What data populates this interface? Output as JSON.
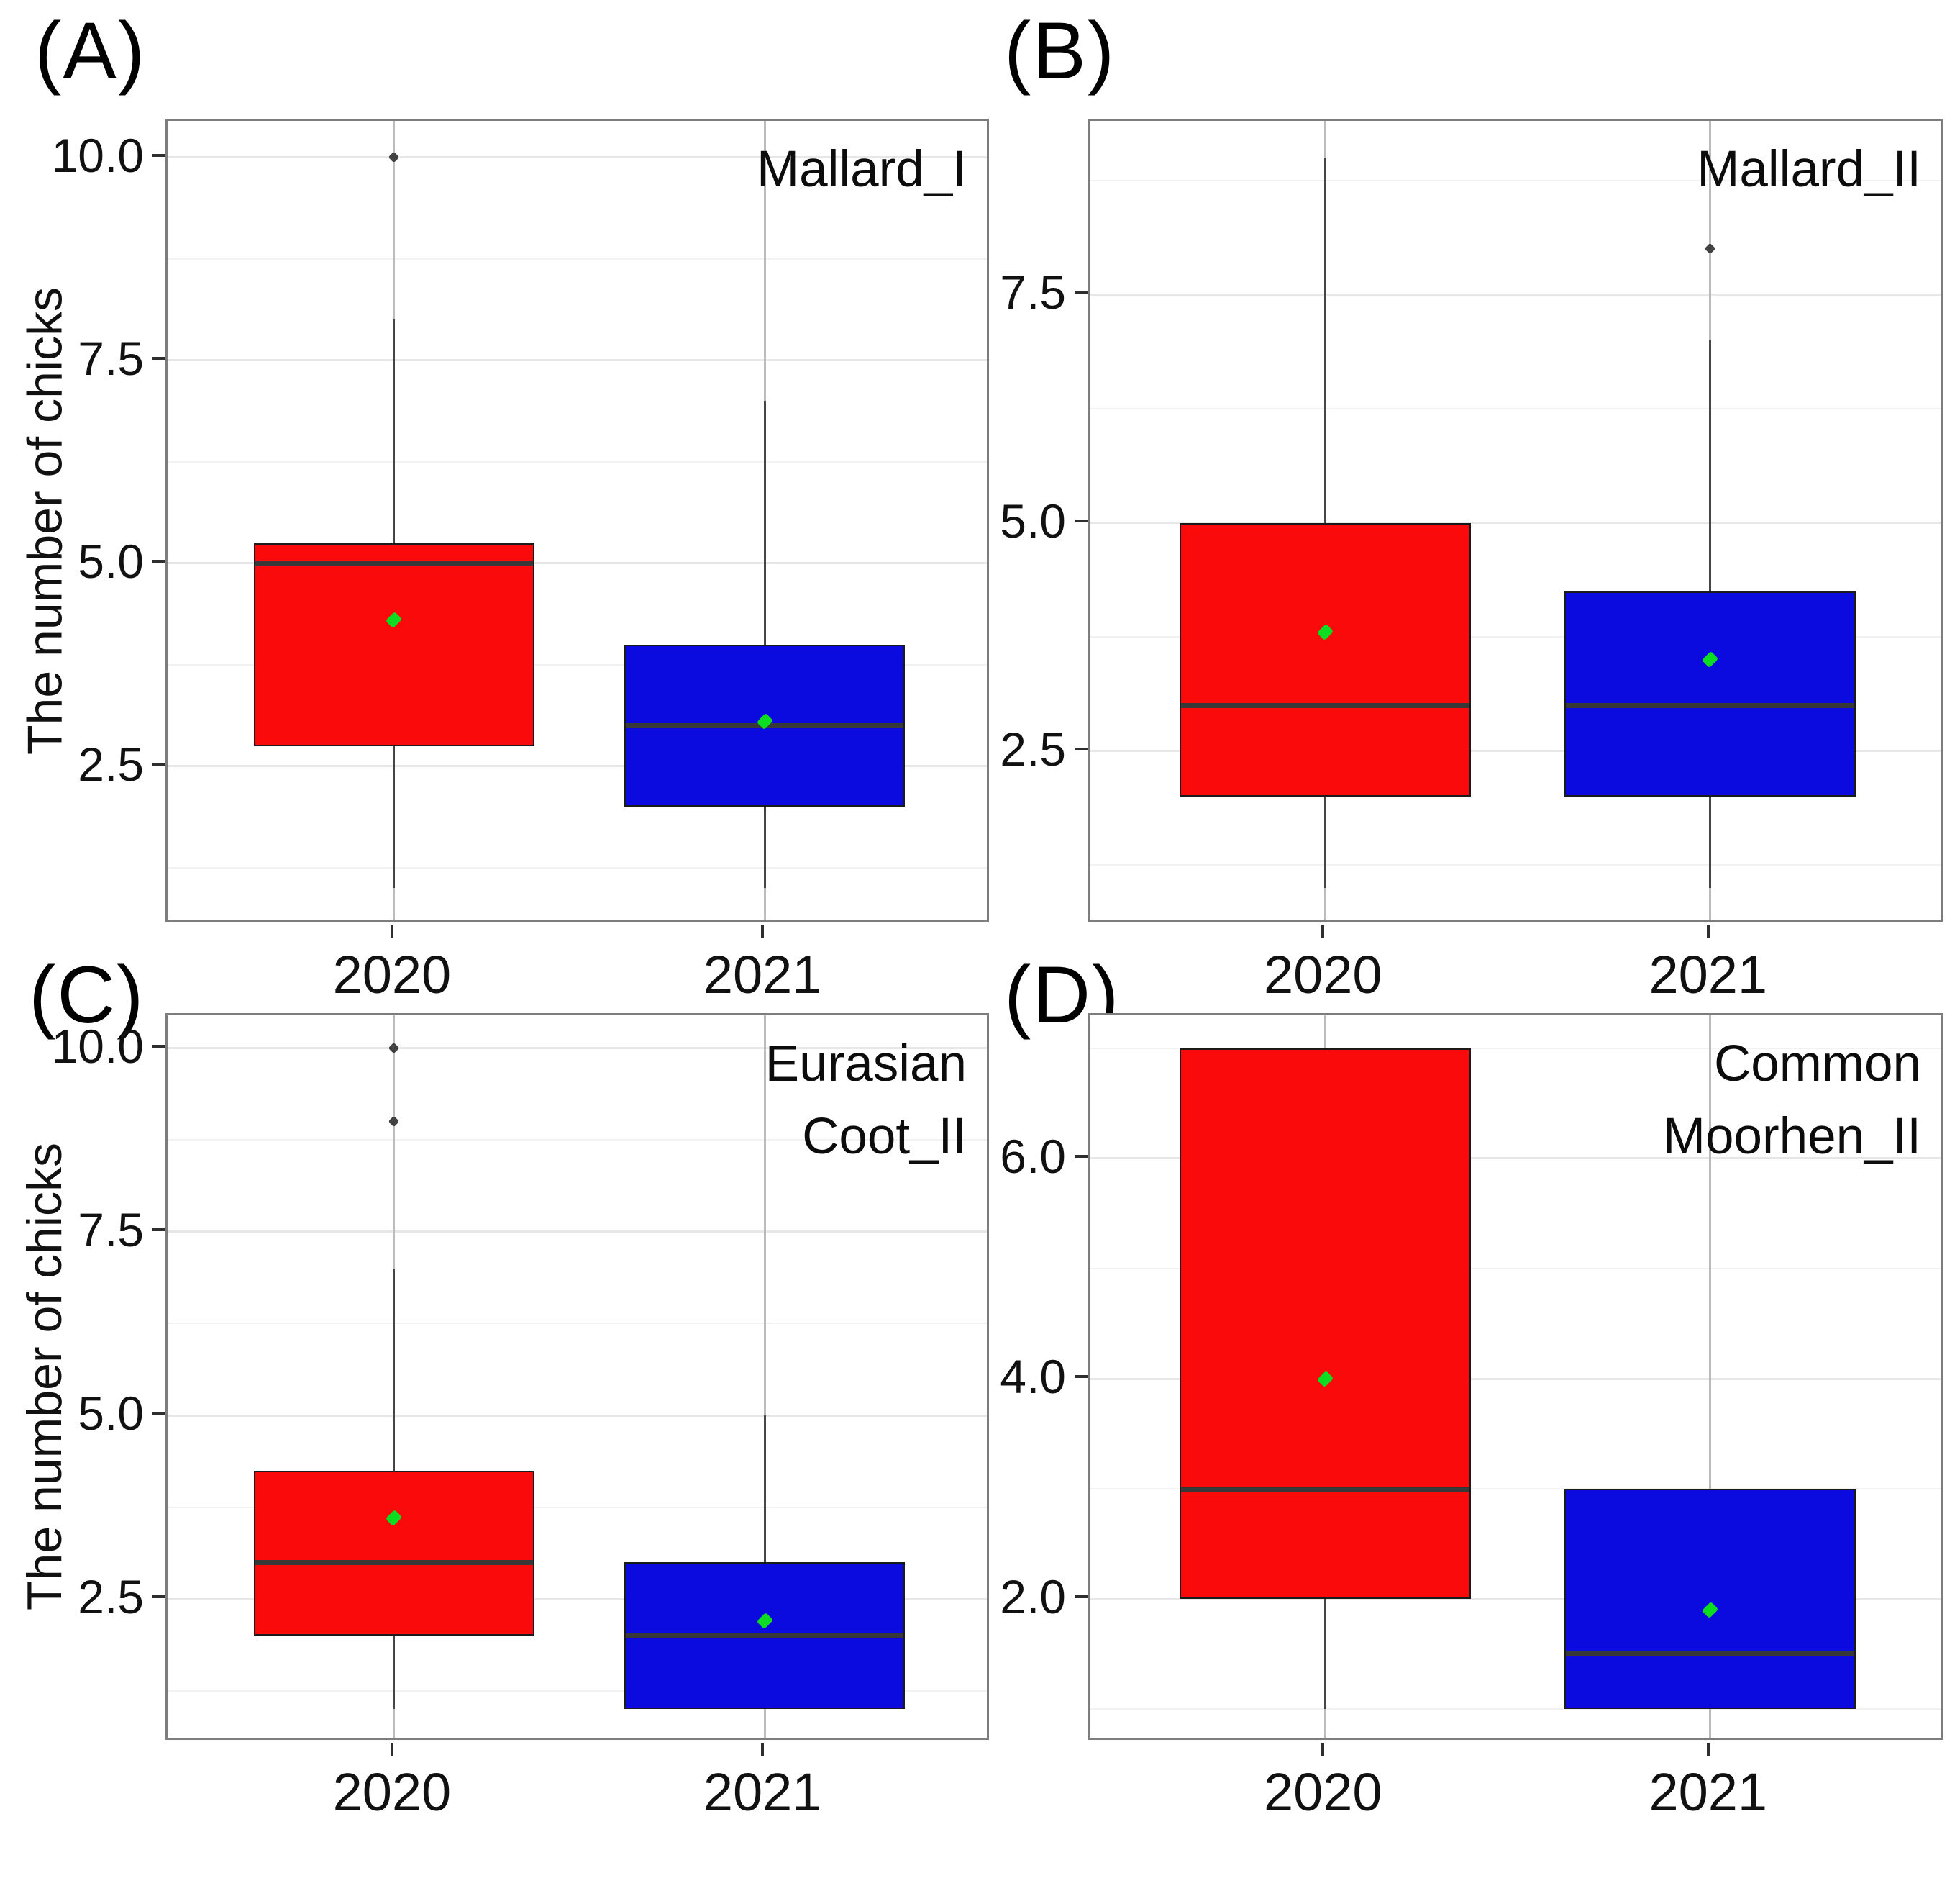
{
  "figure": {
    "description": "Four-panel boxplot figure comparing the number of chicks between 2020 and 2021 for different waterbird species",
    "background": "#ffffff",
    "colors": {
      "year_2020_fill": "#fa0a0a",
      "year_2021_fill": "#0b0be0",
      "mean_marker": "#0ddd22",
      "median_line": "#383838",
      "whisker": "#454545",
      "outlier": "#424242",
      "panel_border": "#7d7d7d",
      "grid_major": "#e7e7e7",
      "grid_minor": "#f2f2f2"
    }
  },
  "chart_data": [
    {
      "type": "boxplot",
      "letter": "(A)",
      "title_lines": [
        "Mallard_I"
      ],
      "y_axis_label": "The number of chicks",
      "ylim": [
        0.55,
        10.45
      ],
      "major_ticks": [
        2.5,
        5.0,
        7.5,
        10.0
      ],
      "tick_labels": [
        "2.5",
        "5.0",
        "7.5",
        "10.0"
      ],
      "minor_ticks": [
        1.25,
        3.75,
        6.25,
        8.75
      ],
      "x_categories": [
        "2020",
        "2021"
      ],
      "boxes": [
        {
          "category": "2020",
          "fill": "#fa0a0a",
          "whisker_low": 1.0,
          "q1": 2.75,
          "median": 5.0,
          "q3": 5.25,
          "whisker_high": 8.0,
          "mean": 4.3,
          "outliers": [
            10.0
          ]
        },
        {
          "category": "2021",
          "fill": "#0b0be0",
          "whisker_low": 1.0,
          "q1": 2.0,
          "median": 3.0,
          "q3": 4.0,
          "whisker_high": 7.0,
          "mean": 3.05,
          "outliers": []
        }
      ]
    },
    {
      "type": "boxplot",
      "letter": "(B)",
      "title_lines": [
        "Mallard_II"
      ],
      "y_axis_label": null,
      "ylim": [
        0.6,
        9.4
      ],
      "major_ticks": [
        2.5,
        5.0,
        7.5
      ],
      "tick_labels": [
        "2.5",
        "5.0",
        "7.5"
      ],
      "minor_ticks": [
        1.25,
        3.75,
        6.25,
        8.75
      ],
      "x_categories": [
        "2020",
        "2021"
      ],
      "boxes": [
        {
          "category": "2020",
          "fill": "#fa0a0a",
          "whisker_low": 1.0,
          "q1": 2.0,
          "median": 3.0,
          "q3": 5.0,
          "whisker_high": 9.0,
          "mean": 3.8,
          "outliers": []
        },
        {
          "category": "2021",
          "fill": "#0b0be0",
          "whisker_low": 1.0,
          "q1": 2.0,
          "median": 3.0,
          "q3": 4.25,
          "whisker_high": 7.0,
          "mean": 3.5,
          "outliers": [
            8.0
          ]
        }
      ]
    },
    {
      "type": "boxplot",
      "letter": "(C)",
      "title_lines": [
        "Eurasian",
        "Coot_II"
      ],
      "y_axis_label": "The number of chicks",
      "ylim": [
        0.55,
        10.45
      ],
      "major_ticks": [
        2.5,
        5.0,
        7.5,
        10.0
      ],
      "tick_labels": [
        "2.5",
        "5.0",
        "7.5",
        "10.0"
      ],
      "minor_ticks": [
        1.25,
        3.75,
        6.25,
        8.75
      ],
      "x_categories": [
        "2020",
        "2021"
      ],
      "boxes": [
        {
          "category": "2020",
          "fill": "#fa0a0a",
          "whisker_low": 1.0,
          "q1": 2.0,
          "median": 3.0,
          "q3": 4.25,
          "whisker_high": 7.0,
          "mean": 3.6,
          "outliers": [
            9.0,
            10.0
          ]
        },
        {
          "category": "2021",
          "fill": "#0b0be0",
          "whisker_low": 1.0,
          "q1": 1.0,
          "median": 2.0,
          "q3": 3.0,
          "whisker_high": 5.0,
          "mean": 2.2,
          "outliers": []
        }
      ]
    },
    {
      "type": "boxplot",
      "letter": "(D)",
      "title_lines": [
        "Common",
        "Moorhen_II"
      ],
      "y_axis_label": null,
      "ylim": [
        0.7,
        7.3
      ],
      "major_ticks": [
        2.0,
        4.0,
        6.0
      ],
      "tick_labels": [
        "2.0",
        "4.0",
        "6.0"
      ],
      "minor_ticks": [
        1.0,
        3.0,
        5.0,
        7.0
      ],
      "x_categories": [
        "2020",
        "2021"
      ],
      "boxes": [
        {
          "category": "2020",
          "fill": "#fa0a0a",
          "whisker_low": 1.0,
          "q1": 2.0,
          "median": 3.0,
          "q3": 7.0,
          "whisker_high": 7.0,
          "mean": 4.0,
          "outliers": []
        },
        {
          "category": "2021",
          "fill": "#0b0be0",
          "whisker_low": 1.0,
          "q1": 1.0,
          "median": 1.5,
          "q3": 3.0,
          "whisker_high": 3.0,
          "mean": 1.9,
          "outliers": []
        }
      ]
    }
  ]
}
